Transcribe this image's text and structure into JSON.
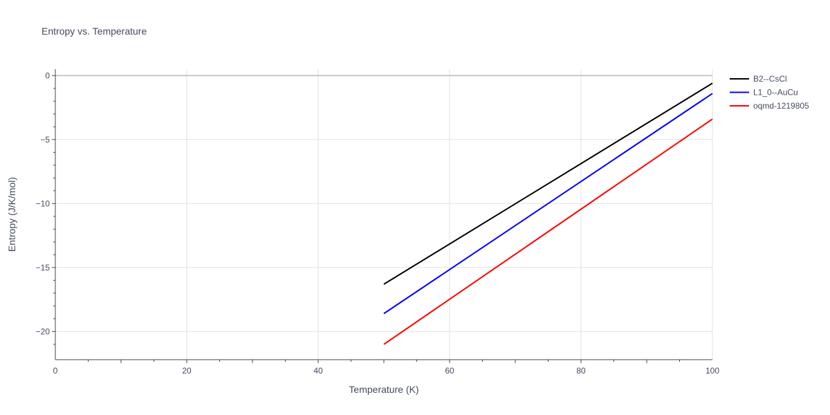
{
  "chart_data": {
    "type": "line",
    "title": "Entropy vs. Temperature",
    "xlabel": "Temperature (K)",
    "ylabel": "Entropy (J/K/mol)",
    "xlim": [
      0,
      100
    ],
    "ylim": [
      -22.2,
      0.5
    ],
    "x_ticks": [
      0,
      20,
      40,
      60,
      80,
      100
    ],
    "y_ticks": [
      0,
      -5,
      -10,
      -15,
      -20
    ],
    "y_tick_labels": [
      "0",
      "−5",
      "−10",
      "−15",
      "−20"
    ],
    "grid": true,
    "legend_position": "top-right",
    "series": [
      {
        "name": "B2--CsCl",
        "color": "#000000",
        "x": [
          50,
          100
        ],
        "y": [
          -16.3,
          -0.6
        ]
      },
      {
        "name": "L1_0--AuCu",
        "color": "#0000ff",
        "x": [
          50,
          100
        ],
        "y": [
          -18.6,
          -1.4
        ]
      },
      {
        "name": "oqmd-1219805",
        "color": "#ff0000",
        "x": [
          50,
          100
        ],
        "y": [
          -21.0,
          -3.4
        ]
      }
    ]
  }
}
